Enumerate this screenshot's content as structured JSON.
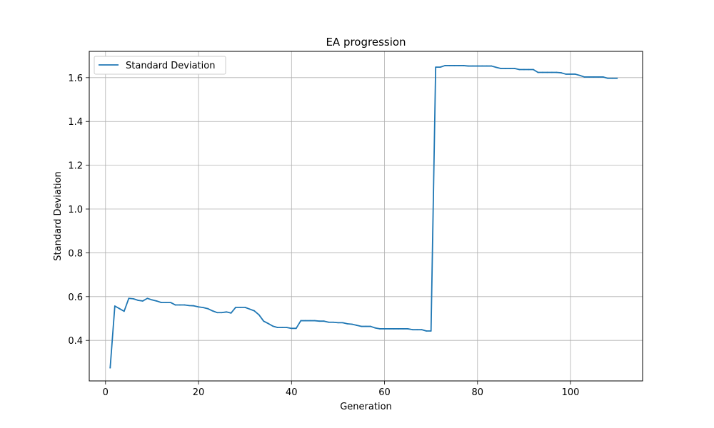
{
  "chart_data": {
    "type": "line",
    "title": "EA progression",
    "xlabel": "Generation",
    "ylabel": "Standard Deviation",
    "xlim": [
      -3.5,
      115.5
    ],
    "ylim": [
      0.215,
      1.72
    ],
    "xticks": [
      0,
      20,
      40,
      60,
      80,
      100
    ],
    "yticks": [
      0.4,
      0.6,
      0.8,
      1.0,
      1.2,
      1.4,
      1.6
    ],
    "ytick_labels": [
      "0.4",
      "0.6",
      "0.8",
      "1.0",
      "1.2",
      "1.4",
      "1.6"
    ],
    "grid": true,
    "legend_position": "upper-left",
    "series": [
      {
        "name": "Standard Deviation",
        "color": "#1f77b4",
        "x": [
          1,
          2,
          3,
          4,
          5,
          6,
          7,
          8,
          9,
          10,
          11,
          12,
          13,
          14,
          15,
          16,
          17,
          18,
          19,
          20,
          21,
          22,
          23,
          24,
          25,
          26,
          27,
          28,
          29,
          30,
          31,
          32,
          33,
          34,
          35,
          36,
          37,
          38,
          39,
          40,
          41,
          42,
          43,
          44,
          45,
          46,
          47,
          48,
          49,
          50,
          51,
          52,
          53,
          54,
          55,
          56,
          57,
          58,
          59,
          60,
          61,
          62,
          63,
          64,
          65,
          66,
          67,
          68,
          69,
          70,
          71,
          72,
          73,
          74,
          75,
          76,
          77,
          78,
          79,
          80,
          81,
          82,
          83,
          84,
          85,
          86,
          87,
          88,
          89,
          90,
          91,
          92,
          93,
          94,
          95,
          96,
          97,
          98,
          99,
          100,
          101,
          102,
          103,
          104,
          105,
          106,
          107,
          108,
          109,
          110
        ],
        "y": [
          0.275,
          0.557,
          0.545,
          0.533,
          0.592,
          0.59,
          0.583,
          0.58,
          0.592,
          0.585,
          0.58,
          0.573,
          0.573,
          0.573,
          0.562,
          0.562,
          0.562,
          0.559,
          0.558,
          0.553,
          0.55,
          0.545,
          0.535,
          0.527,
          0.527,
          0.53,
          0.525,
          0.551,
          0.551,
          0.551,
          0.543,
          0.535,
          0.517,
          0.488,
          0.477,
          0.465,
          0.459,
          0.459,
          0.459,
          0.455,
          0.455,
          0.49,
          0.49,
          0.49,
          0.49,
          0.488,
          0.488,
          0.483,
          0.483,
          0.481,
          0.481,
          0.476,
          0.474,
          0.469,
          0.464,
          0.464,
          0.464,
          0.457,
          0.453,
          0.453,
          0.453,
          0.453,
          0.453,
          0.453,
          0.453,
          0.449,
          0.449,
          0.449,
          0.443,
          0.443,
          1.648,
          1.648,
          1.655,
          1.655,
          1.655,
          1.655,
          1.655,
          1.653,
          1.653,
          1.653,
          1.653,
          1.653,
          1.653,
          1.647,
          1.642,
          1.642,
          1.642,
          1.642,
          1.637,
          1.637,
          1.637,
          1.637,
          1.624,
          1.624,
          1.624,
          1.624,
          1.624,
          1.622,
          1.616,
          1.616,
          1.616,
          1.61,
          1.603,
          1.603,
          1.603,
          1.603,
          1.603,
          1.597,
          1.597,
          1.597
        ]
      }
    ]
  }
}
